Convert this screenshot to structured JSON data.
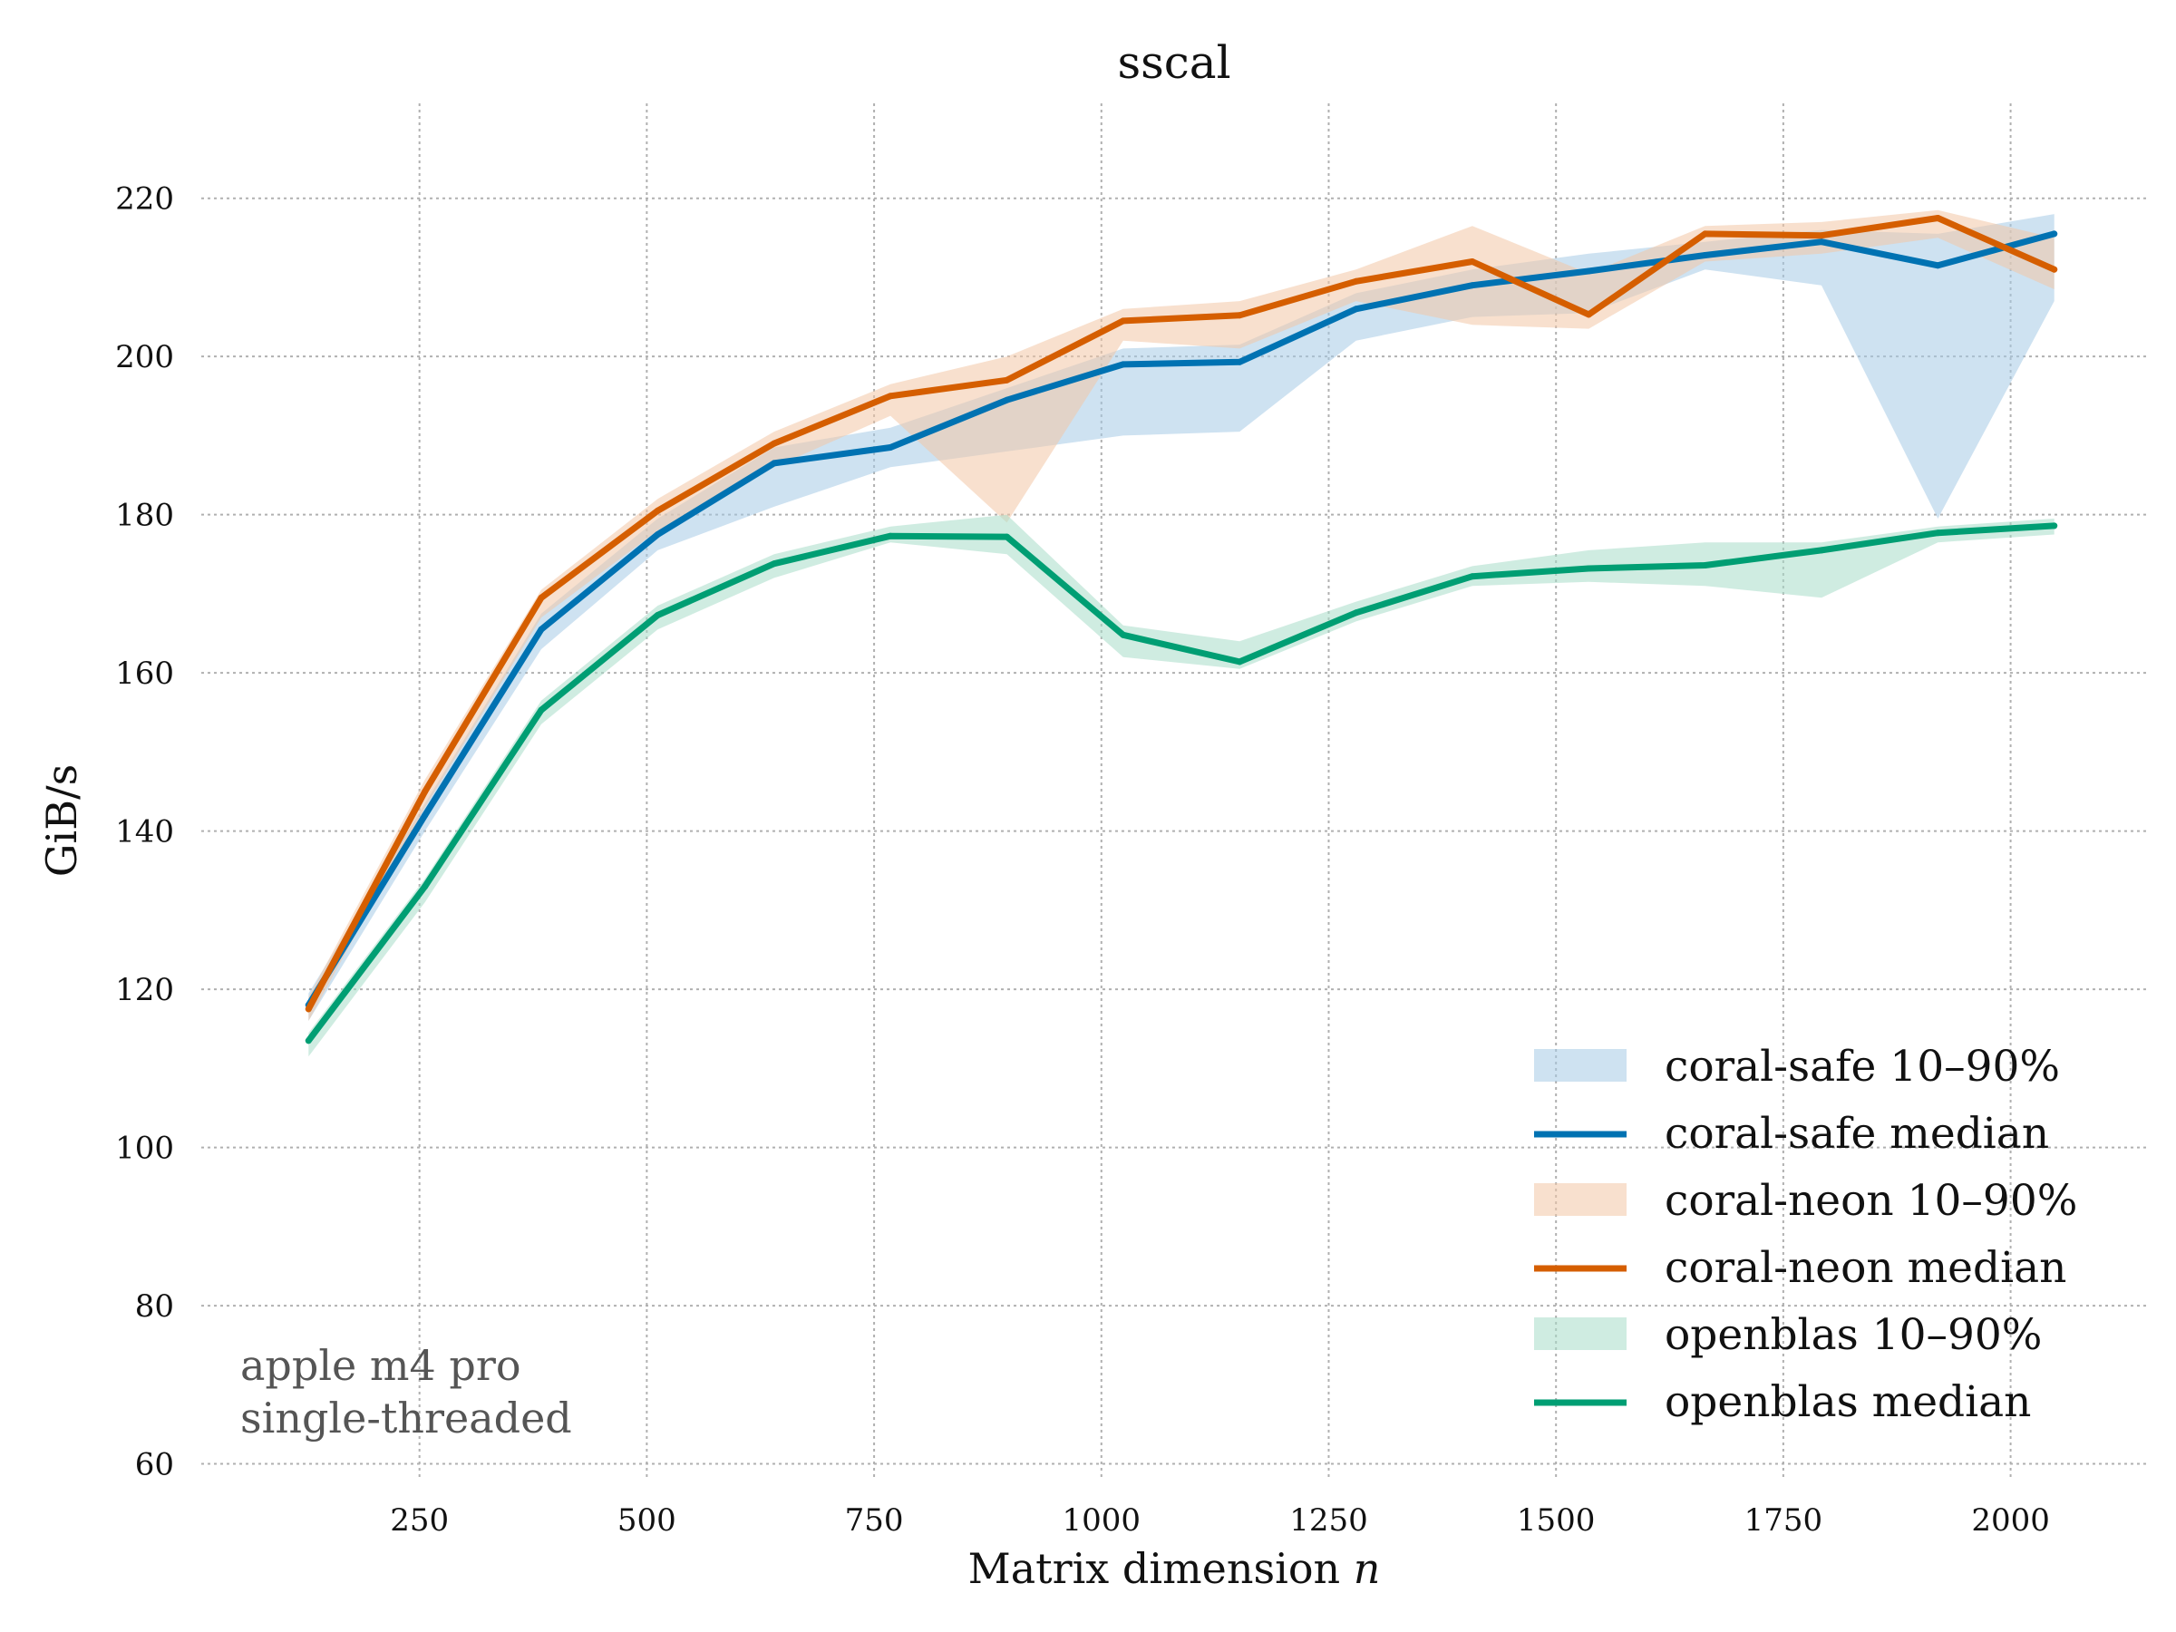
{
  "chart_data": {
    "type": "line",
    "title": "sscal",
    "xlabel_text": "Matrix dimension",
    "xlabel_var": "n",
    "ylabel": "GiB/s",
    "xlim": [
      10,
      2150
    ],
    "ylim": [
      58,
      232
    ],
    "xticks": [
      250,
      500,
      750,
      1000,
      1250,
      1500,
      1750,
      2000
    ],
    "yticks": [
      60,
      80,
      100,
      120,
      140,
      160,
      180,
      200,
      220
    ],
    "grid": true,
    "legend_position": "bottom-right",
    "annotation": [
      "apple m4 pro",
      "single-threaded"
    ],
    "x": [
      128,
      256,
      384,
      512,
      640,
      768,
      896,
      1024,
      1152,
      1280,
      1408,
      1536,
      1664,
      1792,
      1920,
      2048
    ],
    "series": [
      {
        "name": "coral-safe",
        "color": "#0072b2",
        "band_color": "#a6cbe6",
        "median_label": "coral-safe median",
        "band_label": "coral-safe 10–90%",
        "median": [
          118,
          142,
          165.5,
          177.5,
          186.5,
          188.5,
          194.5,
          199,
          199.3,
          206,
          209,
          210.8,
          212.8,
          214.5,
          211.5,
          215.5
        ],
        "p10": [
          116,
          140,
          163,
          175.5,
          181,
          186,
          188,
          190,
          190.5,
          202,
          205,
          205.5,
          211,
          209,
          179.5,
          207
        ],
        "p90": [
          119.5,
          143.5,
          167.5,
          179.5,
          188.5,
          191,
          196,
          201,
          201.5,
          208,
          211,
          213,
          214.5,
          216,
          215.5,
          218
        ]
      },
      {
        "name": "coral-neon",
        "color": "#d55e00",
        "band_color": "#f3c6a6",
        "median_label": "coral-neon median",
        "band_label": "coral-neon 10–90%",
        "median": [
          117.5,
          145,
          169.5,
          180.5,
          189,
          195,
          197,
          204.5,
          205.2,
          209.5,
          212,
          205.3,
          215.5,
          215.3,
          217.5,
          211
        ],
        "p10": [
          116,
          143,
          167,
          178,
          186,
          192.5,
          179,
          202,
          201,
          207,
          204,
          203.5,
          212,
          213,
          215,
          208.5
        ],
        "p90": [
          119,
          146.5,
          170.5,
          182,
          190.5,
          196.5,
          200,
          206,
          207,
          211,
          216.5,
          210.5,
          216.5,
          217,
          218.5,
          215
        ]
      },
      {
        "name": "openblas",
        "color": "#009e73",
        "band_color": "#a8dcc8",
        "median_label": "openblas median",
        "band_label": "openblas 10–90%",
        "median": [
          113.5,
          133,
          155.3,
          167.3,
          173.8,
          177.3,
          177.2,
          164.8,
          161.4,
          167.6,
          172.2,
          173.2,
          173.6,
          175.5,
          177.7,
          178.6
        ],
        "p10": [
          111.5,
          131,
          153.5,
          165.5,
          172,
          176.5,
          175,
          162,
          160.5,
          166.5,
          171,
          171.5,
          171,
          169.5,
          176.5,
          177.5
        ],
        "p90": [
          114.5,
          134,
          156.5,
          168.5,
          175,
          178.5,
          180,
          166,
          164,
          169,
          173.5,
          175.5,
          176.5,
          176.5,
          178.5,
          179.5
        ]
      }
    ]
  }
}
